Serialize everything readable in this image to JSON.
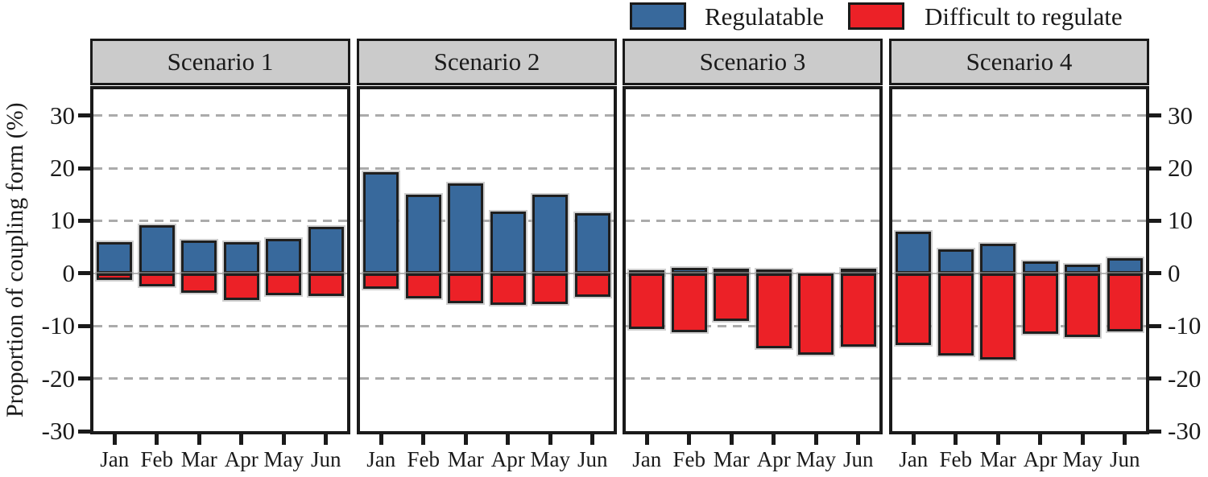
{
  "legend": {
    "items": [
      {
        "label": "Regulatable",
        "color": "#38699C"
      },
      {
        "label": "Difficult to regulate",
        "color": "#EC2127"
      }
    ]
  },
  "y_axis": {
    "title": "Proportion of coupling form (%)",
    "ticks": [
      30,
      20,
      10,
      0,
      -10,
      -20,
      -30
    ]
  },
  "x_axis": {
    "categories": [
      "Jan",
      "Feb",
      "Mar",
      "Apr",
      "May",
      "Jun"
    ]
  },
  "chart_data": {
    "type": "bar",
    "title": "",
    "ylabel": "Proportion of coupling form (%)",
    "categories": [
      "Jan",
      "Feb",
      "Mar",
      "Apr",
      "May",
      "Jun"
    ],
    "ylim": [
      -30,
      35
    ],
    "yticks": [
      30,
      20,
      10,
      0,
      -10,
      -20,
      -30
    ],
    "grid": {
      "dashed_at": [
        30,
        20,
        10,
        -10,
        -20
      ],
      "solid_at": [
        0
      ]
    },
    "legend_position": "top",
    "colors": {
      "regulatable": "#38699C",
      "difficult_to_regulate": "#EC2127",
      "header_fill": "#CBCBCB",
      "frame": "#1A1A1A",
      "gridline": "#ABABAB"
    },
    "panels": [
      {
        "title": "Scenario 1",
        "series": [
          {
            "name": "Regulatable",
            "values": [
              6.0,
              9.2,
              6.3,
              5.9,
              6.6,
              8.9
            ]
          },
          {
            "name": "Difficult to regulate",
            "values": [
              -1.3,
              -2.5,
              -3.7,
              -5.1,
              -4.2,
              -4.3
            ]
          }
        ]
      },
      {
        "title": "Scenario 2",
        "series": [
          {
            "name": "Regulatable",
            "values": [
              19.3,
              14.9,
              17.1,
              11.8,
              15.0,
              11.4
            ]
          },
          {
            "name": "Difficult to regulate",
            "values": [
              -3.0,
              -4.7,
              -5.7,
              -6.0,
              -5.9,
              -4.4
            ]
          }
        ]
      },
      {
        "title": "Scenario 3",
        "series": [
          {
            "name": "Regulatable",
            "values": [
              0.6,
              1.0,
              0.9,
              0.7,
              0.0,
              0.9
            ]
          },
          {
            "name": "Difficult to regulate",
            "values": [
              -10.6,
              -11.2,
              -9.0,
              -14.3,
              -15.5,
              -13.9
            ]
          }
        ]
      },
      {
        "title": "Scenario 4",
        "series": [
          {
            "name": "Regulatable",
            "values": [
              7.9,
              4.6,
              5.6,
              2.3,
              1.7,
              2.9
            ]
          },
          {
            "name": "Difficult to regulate",
            "values": [
              -13.7,
              -15.6,
              -16.4,
              -11.5,
              -12.1,
              -11.1
            ]
          }
        ]
      }
    ]
  }
}
